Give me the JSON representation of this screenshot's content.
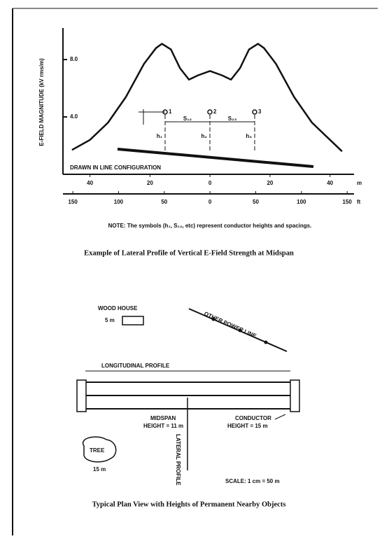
{
  "chart_data": {
    "type": "line",
    "ylabel": "E-FIELD MAGNITUDE (kV rms/m)",
    "annotation": "DRAWN IN LINE CONFIGURATION",
    "conductors": [
      "1",
      "2",
      "3"
    ],
    "spacing_labels": [
      "S₁₂",
      "S₂₃"
    ],
    "height_labels": [
      "h₁",
      "h₂",
      "h₃"
    ],
    "x": [
      -46,
      -40,
      -34,
      -28,
      -22,
      -18,
      -16,
      -13,
      -10,
      -7,
      -4,
      0,
      4,
      7,
      10,
      13,
      16,
      18,
      22,
      28,
      34,
      40,
      44
    ],
    "series": [
      {
        "color": "#111111",
        "values": [
          1.7,
          2.4,
          3.6,
          5.4,
          7.7,
          8.8,
          9.1,
          8.7,
          7.4,
          6.6,
          6.9,
          7.2,
          6.9,
          6.6,
          7.4,
          8.7,
          9.1,
          8.8,
          7.7,
          5.4,
          3.6,
          2.4,
          1.6
        ]
      }
    ],
    "xlim": [
      -49,
      48
    ],
    "xticks": [
      {
        "value": -40,
        "label": "40"
      },
      {
        "value": -20,
        "label": "20"
      },
      0,
      20,
      40
    ],
    "xunit": "m",
    "x2lim": [
      -160.8,
      157.5
    ],
    "x2ticks": [
      {
        "value": -150,
        "label": "150"
      },
      {
        "value": -100,
        "label": "100"
      },
      {
        "value": -50,
        "label": "50"
      },
      0,
      50,
      100,
      150
    ],
    "x2unit": "ft",
    "ylim": [
      0,
      10.2
    ],
    "yticks": [
      {
        "value": 4,
        "label": "4.0"
      },
      {
        "value": 8,
        "label": "8.0"
      }
    ]
  },
  "note": "NOTE: The symbols (h₁, S₁₂, etc) represent conductor heights and spacings.",
  "caption1": "Example of Lateral Profile of Vertical E-Field Strength at Midspan",
  "plan_view": {
    "wood_house": "WOOD HOUSE",
    "house_size": "5 m",
    "other_line": "OTHER POWER LINE",
    "longitudinal": "LONGITUDINAL PROFILE",
    "midspan": "MIDSPAN",
    "midspan_height": "HEIGHT = 11 m",
    "conductor": "CONDUCTOR",
    "conductor_height": "HEIGHT = 15 m",
    "tree": "TREE",
    "tree_size": "15 m",
    "lateral": "LATERAL PROFILE",
    "scale": "SCALE: 1 cm = 50 m",
    "caption": "Typical Plan View with Heights of Permanent Nearby Objects"
  }
}
